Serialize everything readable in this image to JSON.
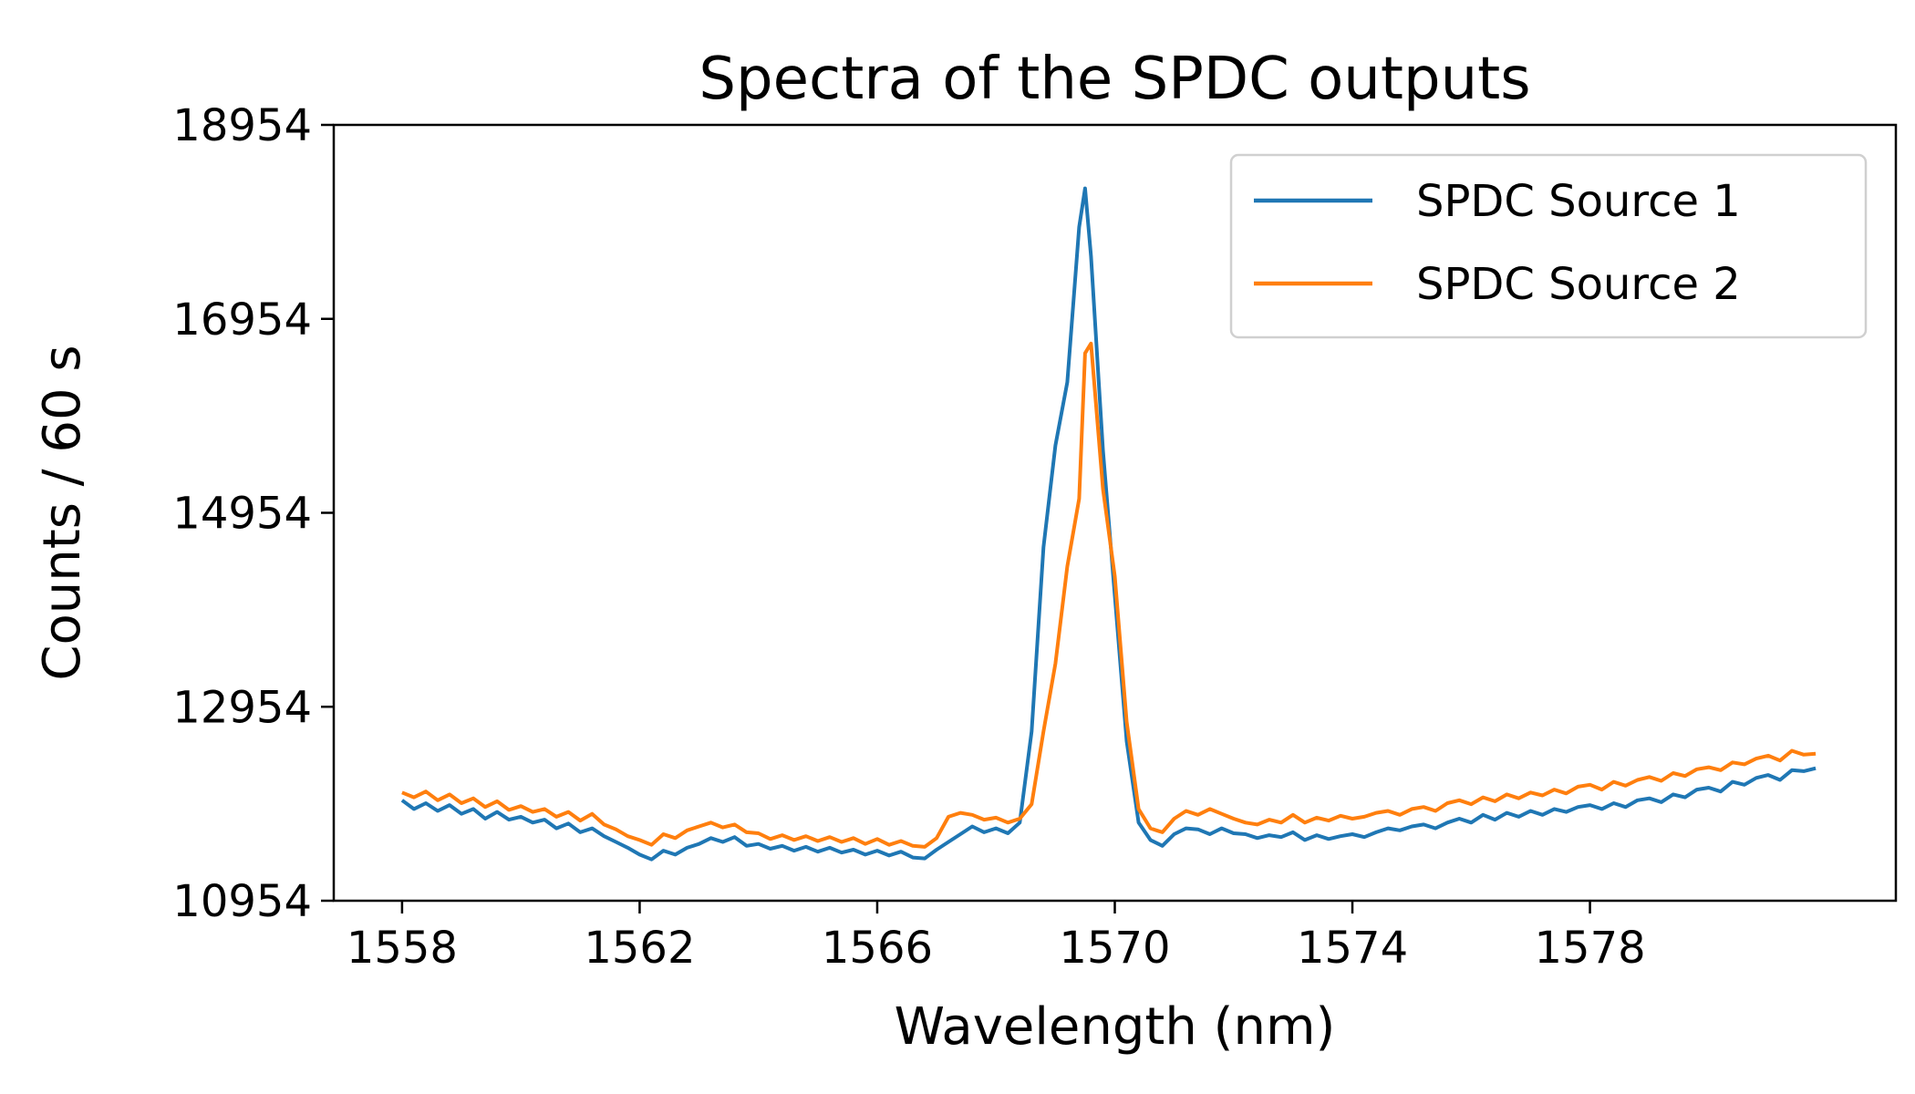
{
  "chart_data": {
    "type": "line",
    "title": "Spectra of the SPDC outputs",
    "xlabel": "Wavelength (nm)",
    "ylabel": "Counts / 60 s",
    "xlim": [
      1556.85,
      1583.15
    ],
    "ylim": [
      10954,
      18954
    ],
    "xticks": [
      1558,
      1562,
      1566,
      1570,
      1574,
      1578
    ],
    "yticks": [
      10954,
      12954,
      14954,
      16954,
      18954
    ],
    "grid": false,
    "legend_position": "top-right",
    "series": [
      {
        "name": "SPDC Source 1",
        "color": "#1f77b4",
        "x": [
          1558.0,
          1558.2,
          1558.4,
          1558.6,
          1558.8,
          1559.0,
          1559.2,
          1559.4,
          1559.6,
          1559.8,
          1560.0,
          1560.2,
          1560.4,
          1560.6,
          1560.8,
          1561.0,
          1561.2,
          1561.4,
          1561.6,
          1561.8,
          1562.0,
          1562.2,
          1562.4,
          1562.6,
          1562.8,
          1563.0,
          1563.2,
          1563.4,
          1563.6,
          1563.8,
          1564.0,
          1564.2,
          1564.4,
          1564.6,
          1564.8,
          1565.0,
          1565.2,
          1565.4,
          1565.6,
          1565.8,
          1566.0,
          1566.2,
          1566.4,
          1566.6,
          1566.8,
          1567.0,
          1567.2,
          1567.4,
          1567.6,
          1567.8,
          1568.0,
          1568.2,
          1568.4,
          1568.6,
          1568.8,
          1569.0,
          1569.2,
          1569.4,
          1569.5,
          1569.6,
          1569.8,
          1570.0,
          1570.2,
          1570.4,
          1570.6,
          1570.8,
          1571.0,
          1571.2,
          1571.4,
          1571.6,
          1571.8,
          1572.0,
          1572.2,
          1572.4,
          1572.6,
          1572.8,
          1573.0,
          1573.2,
          1573.4,
          1573.6,
          1573.8,
          1574.0,
          1574.2,
          1574.4,
          1574.6,
          1574.8,
          1575.0,
          1575.2,
          1575.4,
          1575.6,
          1575.8,
          1576.0,
          1576.2,
          1576.4,
          1576.6,
          1576.8,
          1577.0,
          1577.2,
          1577.4,
          1577.6,
          1577.8,
          1578.0,
          1578.2,
          1578.4,
          1578.6,
          1578.8,
          1579.0,
          1579.2,
          1579.4,
          1579.6,
          1579.8,
          1580.0,
          1580.2,
          1580.4,
          1580.6,
          1580.8,
          1581.0,
          1581.2,
          1581.4,
          1581.6,
          1581.8
        ],
        "y": [
          11990,
          11900,
          11960,
          11880,
          11940,
          11850,
          11900,
          11800,
          11870,
          11790,
          11820,
          11760,
          11790,
          11700,
          11750,
          11660,
          11700,
          11620,
          11560,
          11500,
          11430,
          11380,
          11470,
          11430,
          11500,
          11540,
          11600,
          11560,
          11610,
          11520,
          11540,
          11490,
          11520,
          11470,
          11510,
          11460,
          11500,
          11450,
          11480,
          11430,
          11470,
          11420,
          11460,
          11400,
          11390,
          11480,
          11560,
          11640,
          11720,
          11660,
          11700,
          11650,
          11760,
          12700,
          14600,
          15650,
          16300,
          17900,
          18300,
          17600,
          15600,
          14100,
          12600,
          11760,
          11580,
          11520,
          11640,
          11700,
          11690,
          11640,
          11700,
          11650,
          11640,
          11600,
          11630,
          11610,
          11660,
          11580,
          11630,
          11590,
          11620,
          11640,
          11610,
          11660,
          11700,
          11680,
          11720,
          11740,
          11700,
          11760,
          11800,
          11760,
          11840,
          11790,
          11860,
          11820,
          11880,
          11840,
          11900,
          11870,
          11920,
          11940,
          11900,
          11960,
          11920,
          11990,
          12010,
          11970,
          12050,
          12020,
          12100,
          12120,
          12080,
          12180,
          12150,
          12220,
          12250,
          12200,
          12300,
          12290,
          12320
        ]
      },
      {
        "name": "SPDC Source 2",
        "color": "#ff7f0e",
        "x": [
          1558.0,
          1558.2,
          1558.4,
          1558.6,
          1558.8,
          1559.0,
          1559.2,
          1559.4,
          1559.6,
          1559.8,
          1560.0,
          1560.2,
          1560.4,
          1560.6,
          1560.8,
          1561.0,
          1561.2,
          1561.4,
          1561.6,
          1561.8,
          1562.0,
          1562.2,
          1562.4,
          1562.6,
          1562.8,
          1563.0,
          1563.2,
          1563.4,
          1563.6,
          1563.8,
          1564.0,
          1564.2,
          1564.4,
          1564.6,
          1564.8,
          1565.0,
          1565.2,
          1565.4,
          1565.6,
          1565.8,
          1566.0,
          1566.2,
          1566.4,
          1566.6,
          1566.8,
          1567.0,
          1567.2,
          1567.4,
          1567.6,
          1567.8,
          1568.0,
          1568.2,
          1568.4,
          1568.6,
          1568.8,
          1569.0,
          1569.2,
          1569.4,
          1569.5,
          1569.6,
          1569.8,
          1570.0,
          1570.2,
          1570.4,
          1570.6,
          1570.8,
          1571.0,
          1571.2,
          1571.4,
          1571.6,
          1571.8,
          1572.0,
          1572.2,
          1572.4,
          1572.6,
          1572.8,
          1573.0,
          1573.2,
          1573.4,
          1573.6,
          1573.8,
          1574.0,
          1574.2,
          1574.4,
          1574.6,
          1574.8,
          1575.0,
          1575.2,
          1575.4,
          1575.6,
          1575.8,
          1576.0,
          1576.2,
          1576.4,
          1576.6,
          1576.8,
          1577.0,
          1577.2,
          1577.4,
          1577.6,
          1577.8,
          1578.0,
          1578.2,
          1578.4,
          1578.6,
          1578.8,
          1579.0,
          1579.2,
          1579.4,
          1579.6,
          1579.8,
          1580.0,
          1580.2,
          1580.4,
          1580.6,
          1580.8,
          1581.0,
          1581.2,
          1581.4,
          1581.6,
          1581.8
        ],
        "y": [
          12070,
          12020,
          12080,
          11990,
          12050,
          11960,
          12010,
          11920,
          11980,
          11890,
          11930,
          11870,
          11900,
          11820,
          11870,
          11780,
          11850,
          11740,
          11690,
          11620,
          11580,
          11530,
          11640,
          11600,
          11680,
          11720,
          11760,
          11710,
          11740,
          11660,
          11650,
          11590,
          11630,
          11580,
          11620,
          11570,
          11610,
          11560,
          11600,
          11540,
          11590,
          11530,
          11570,
          11520,
          11510,
          11600,
          11820,
          11860,
          11840,
          11790,
          11810,
          11760,
          11800,
          11950,
          12700,
          13400,
          14400,
          15100,
          16600,
          16700,
          15200,
          14300,
          12800,
          11900,
          11700,
          11660,
          11800,
          11880,
          11840,
          11900,
          11850,
          11800,
          11760,
          11740,
          11790,
          11760,
          11840,
          11760,
          11810,
          11780,
          11830,
          11800,
          11820,
          11860,
          11880,
          11840,
          11900,
          11920,
          11880,
          11960,
          11990,
          11950,
          12020,
          11980,
          12050,
          12010,
          12070,
          12040,
          12100,
          12060,
          12130,
          12150,
          12100,
          12180,
          12140,
          12200,
          12230,
          12190,
          12270,
          12240,
          12310,
          12330,
          12300,
          12380,
          12360,
          12420,
          12450,
          12400,
          12500,
          12460,
          12470
        ]
      }
    ]
  }
}
